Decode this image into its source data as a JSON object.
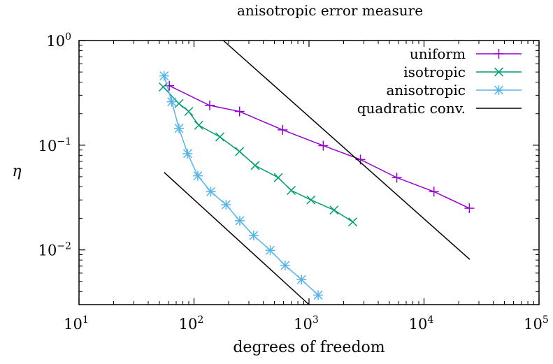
{
  "chart_data": {
    "type": "line",
    "title": "anisotropic error measure",
    "xlabel": "degrees of freedom",
    "ylabel": "η",
    "x_scale": "log",
    "y_scale": "log",
    "xlim": [
      10,
      100000
    ],
    "ylim": [
      0.003,
      1
    ],
    "x_ticks": [
      {
        "value": 10,
        "base": "10",
        "exp": "1"
      },
      {
        "value": 100,
        "base": "10",
        "exp": "2"
      },
      {
        "value": 1000,
        "base": "10",
        "exp": "3"
      },
      {
        "value": 10000,
        "base": "10",
        "exp": "4"
      },
      {
        "value": 100000,
        "base": "10",
        "exp": "5"
      }
    ],
    "y_ticks": [
      {
        "value": 1,
        "base": "10",
        "exp": "0"
      },
      {
        "value": 0.1,
        "base": "10",
        "exp": "−1"
      },
      {
        "value": 0.01,
        "base": "10",
        "exp": "−2"
      }
    ],
    "grid": false,
    "legend_position": "top-right",
    "series": [
      {
        "name": "uniform",
        "color": "#9400d3",
        "marker": "plus",
        "x": [
          61,
          137,
          249,
          590,
          1330,
          2800,
          5800,
          12200,
          24800
        ],
        "y": [
          0.37,
          0.24,
          0.21,
          0.14,
          0.099,
          0.073,
          0.049,
          0.036,
          0.025
        ]
      },
      {
        "name": "isotropic",
        "color": "#009e73",
        "marker": "cross",
        "x": [
          54,
          74,
          90,
          110,
          168,
          249,
          340,
          540,
          700,
          1040,
          1650,
          2400
        ],
        "y": [
          0.36,
          0.25,
          0.21,
          0.155,
          0.12,
          0.087,
          0.064,
          0.049,
          0.037,
          0.03,
          0.024,
          0.0185
        ]
      },
      {
        "name": "anisotropic",
        "color": "#56b4e9",
        "marker": "star",
        "x": [
          55,
          64,
          74,
          88,
          108,
          140,
          190,
          250,
          330,
          460,
          620,
          860,
          1200
        ],
        "y": [
          0.46,
          0.26,
          0.145,
          0.083,
          0.051,
          0.036,
          0.027,
          0.019,
          0.0137,
          0.0099,
          0.0071,
          0.0052,
          0.0037
        ]
      },
      {
        "name": "quadratic conv.",
        "color": "#000000",
        "marker": "none",
        "segments": [
          {
            "x": [
              180,
              25000
            ],
            "y": [
              1.0,
              0.0081
            ]
          },
          {
            "x": [
              55,
              1000
            ],
            "y": [
              0.055,
              0.003
            ]
          }
        ]
      }
    ]
  }
}
